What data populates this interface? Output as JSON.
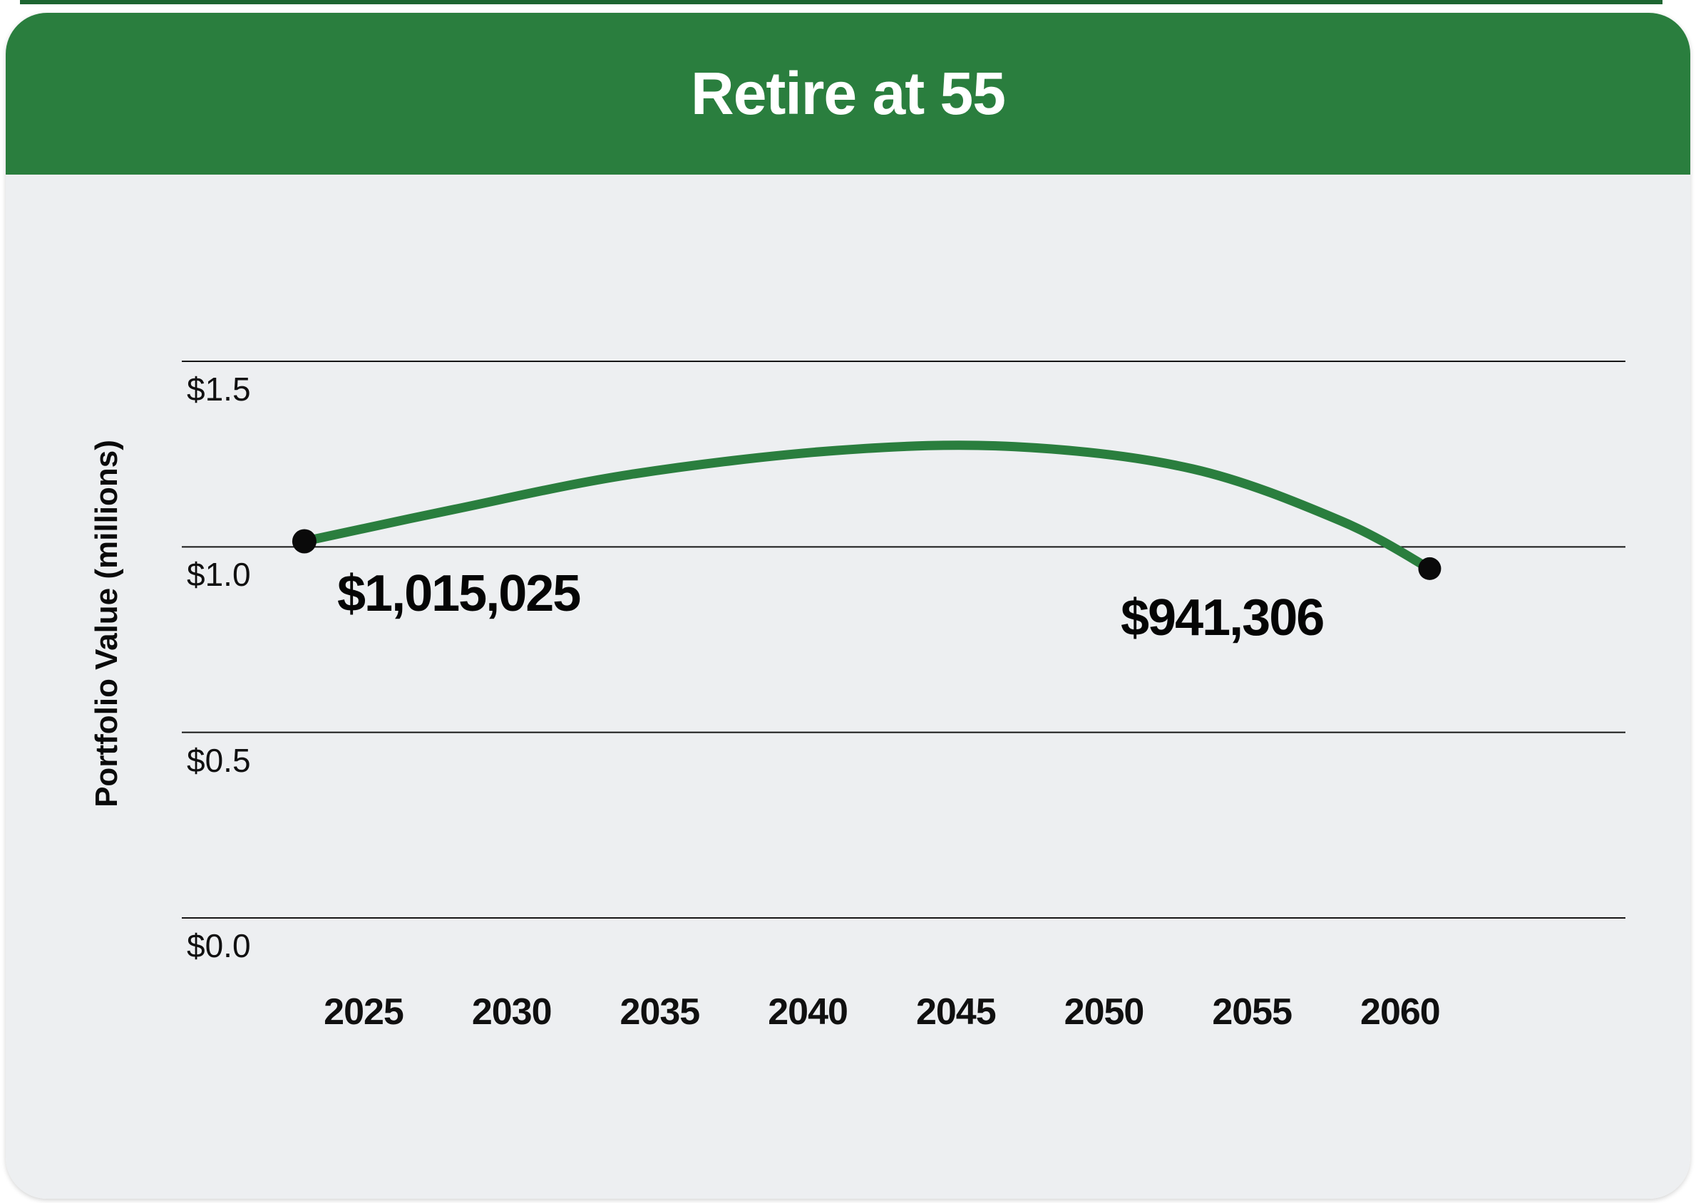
{
  "header": {
    "title": "Retire at 55"
  },
  "colors": {
    "header_green": "#2a7e3e",
    "line_green": "#2a7e3e",
    "card_background": "#edeff1",
    "gridline": "#161616",
    "marker_black": "#0a0a0a",
    "top_strip_green": "#1d6531",
    "title_text": "#ffffff"
  },
  "chart_data": {
    "type": "line",
    "title": "Retire at 55",
    "xlabel": "",
    "ylabel": "Portfolio Value (millions)",
    "grid": "horizontal",
    "legend": "none",
    "ylim": [
      0,
      1.7
    ],
    "xlim": [
      2022,
      2063
    ],
    "y_ticks": [
      {
        "label": "$1.5",
        "value": 1.5
      },
      {
        "label": "$1.0",
        "value": 1.0
      },
      {
        "label": "$0.5",
        "value": 0.5
      },
      {
        "label": "$0.0",
        "value": 0.0
      }
    ],
    "x_ticks": [
      {
        "label": "2025",
        "year": 2025
      },
      {
        "label": "2030",
        "year": 2030
      },
      {
        "label": "2035",
        "year": 2035
      },
      {
        "label": "2040",
        "year": 2040
      },
      {
        "label": "2045",
        "year": 2045
      },
      {
        "label": "2050",
        "year": 2050
      },
      {
        "label": "2055",
        "year": 2055
      },
      {
        "label": "2060",
        "year": 2060
      }
    ],
    "series": [
      {
        "name": "Portfolio Value",
        "color": "#2a7e3e",
        "start_value_dollars": 1015025,
        "end_value_dollars": 941306,
        "points": [
          {
            "year": 2023,
            "value_millions": 1.015025
          },
          {
            "year": 2028,
            "value_millions": 1.1
          },
          {
            "year": 2034,
            "value_millions": 1.195
          },
          {
            "year": 2041,
            "value_millions": 1.26
          },
          {
            "year": 2047,
            "value_millions": 1.27
          },
          {
            "year": 2053,
            "value_millions": 1.21
          },
          {
            "year": 2058,
            "value_millions": 1.07
          },
          {
            "year": 2061,
            "value_millions": 0.941306
          }
        ]
      }
    ],
    "point_labels": [
      {
        "text": "$1,015,025",
        "anchor": "start-point"
      },
      {
        "text": "$941,306",
        "anchor": "end-point"
      }
    ]
  }
}
